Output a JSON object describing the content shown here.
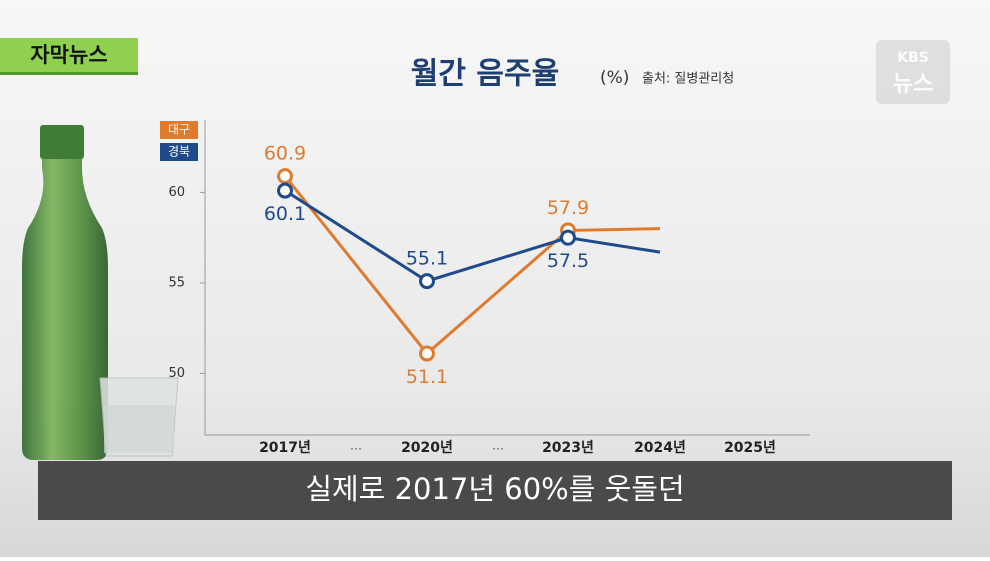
{
  "badge": "자막뉴스",
  "logo": {
    "brand": "KBS",
    "name": "뉴스"
  },
  "caption": "실제로 2017년 60%를 웃돌던",
  "chart_data": {
    "type": "line",
    "title": "월간 음주율",
    "unit": "(%)",
    "source": "출처: 질병관리청",
    "categories": [
      "2017년",
      "2020년",
      "2023년",
      "2024년",
      "2025년"
    ],
    "breaks": [
      "…",
      "…"
    ],
    "series": [
      {
        "name": "대구",
        "color": "#e07b2e",
        "values": [
          60.9,
          51.1,
          57.9,
          58.0,
          null
        ],
        "value_labels": [
          "60.9",
          "51.1",
          "57.9",
          null,
          null
        ]
      },
      {
        "name": "경북",
        "color": "#1f4a8c",
        "values": [
          60.1,
          55.1,
          57.5,
          56.7,
          null
        ],
        "value_labels": [
          "60.1",
          "55.1",
          "57.5",
          null,
          null
        ]
      }
    ],
    "ylim": [
      46.6,
      64
    ],
    "yticks": [
      50,
      55,
      60
    ],
    "legend": "top-left"
  }
}
